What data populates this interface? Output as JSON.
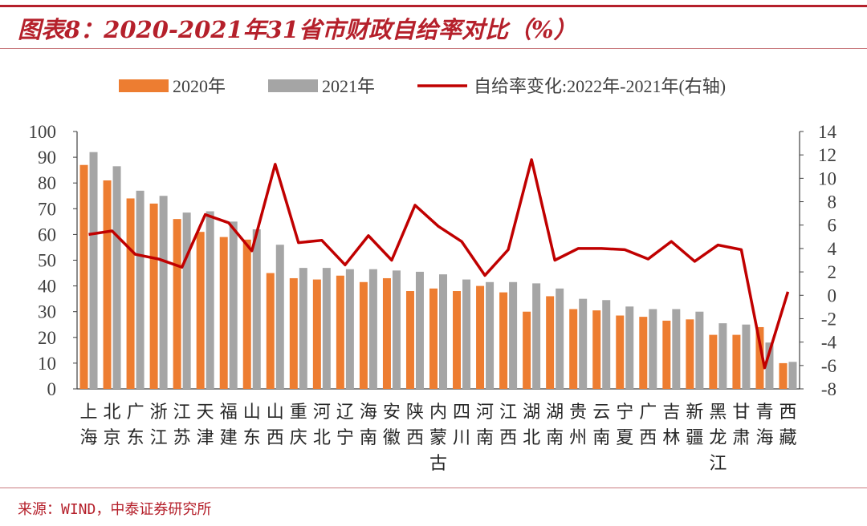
{
  "title": "图表8：2020-2021年31省市财政自给率对比（%）",
  "source": "来源：WIND，中泰证券研究所",
  "colors": {
    "accent": "#b5202b",
    "bar2020": "#ed7d31",
    "bar2021": "#a5a5a5",
    "line": "#c00000"
  },
  "chart_data": {
    "type": "bar",
    "title": "2020-2021年31省市财政自给率对比（%）",
    "legend": [
      "2020年",
      "2021年",
      "自给率变化:2022年-2021年(右轴)"
    ],
    "legend_position": "top",
    "categories": [
      "上海",
      "北京",
      "广东",
      "浙江",
      "江苏",
      "天津",
      "福建",
      "山东",
      "山西",
      "重庆",
      "河北",
      "辽宁",
      "海南",
      "安徽",
      "陕西",
      "内蒙古",
      "四川",
      "河南",
      "江西",
      "湖北",
      "湖南",
      "贵州",
      "云南",
      "宁夏",
      "广西",
      "吉林",
      "新疆",
      "黑龙江",
      "甘肃",
      "青海",
      "西藏"
    ],
    "series": [
      {
        "name": "2020年",
        "axis": "left",
        "values": [
          87,
          81,
          74,
          72,
          66,
          61,
          59,
          58,
          45,
          43,
          42.5,
          44,
          41.5,
          43,
          38,
          39,
          38,
          40,
          37.5,
          30,
          36,
          31,
          30.5,
          28.5,
          28,
          26.5,
          27,
          21,
          21,
          24,
          10
        ]
      },
      {
        "name": "2021年",
        "axis": "left",
        "values": [
          92,
          86.5,
          77,
          75,
          68.5,
          69,
          65,
          62,
          56,
          47,
          47,
          46.5,
          46.5,
          46,
          45.5,
          44.5,
          42.5,
          41.5,
          41.5,
          41,
          39,
          35,
          34.5,
          32,
          31,
          31,
          30,
          25.5,
          25,
          18,
          10.5
        ]
      },
      {
        "name": "自给率变化:2022年-2021年(右轴)",
        "axis": "right",
        "type": "line",
        "values": [
          5.2,
          5.5,
          3.5,
          3.1,
          2.4,
          6.9,
          6.2,
          3.8,
          11.2,
          4.5,
          4.7,
          2.6,
          5.1,
          3.0,
          7.7,
          5.9,
          4.6,
          1.7,
          3.9,
          11.6,
          3.0,
          4.0,
          4.0,
          3.9,
          3.1,
          4.6,
          2.9,
          4.3,
          3.9,
          -6.2,
          0.3
        ]
      }
    ],
    "ylim_left": [
      0,
      100
    ],
    "yticks_left": [
      "0",
      "10",
      "20",
      "30",
      "40",
      "50",
      "60",
      "70",
      "80",
      "90",
      "100"
    ],
    "ylim_right": [
      -8,
      14
    ],
    "yticks_right": [
      "-8",
      "-6",
      "-4",
      "-2",
      "0",
      "2",
      "4",
      "6",
      "8",
      "10",
      "12",
      "14"
    ]
  }
}
